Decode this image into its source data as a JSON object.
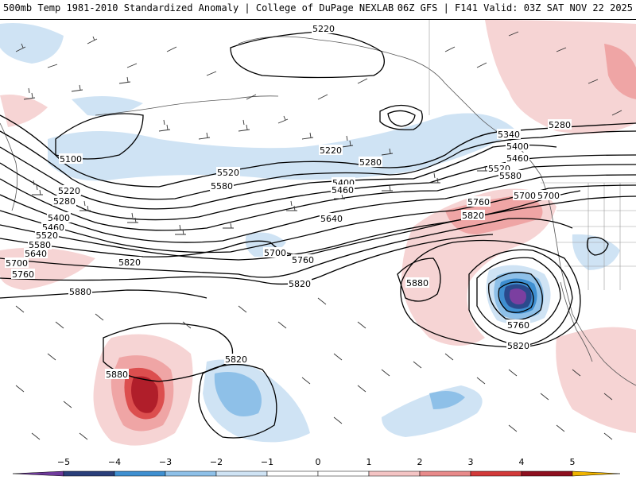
{
  "header": {
    "title_left": "500mb Temp 1981-2010 Standardized Anomaly | College of DuPage NEXLAB",
    "title_right": "06Z GFS | F141 Valid: 03Z SAT NOV 22 2025"
  },
  "map": {
    "contour_labels": [
      "5220",
      "5100",
      "5220",
      "5280",
      "5400",
      "5460",
      "5520",
      "5580",
      "5640",
      "5700",
      "5760",
      "5820",
      "5880",
      "5340",
      "5400",
      "5460",
      "5520",
      "5580",
      "5700",
      "5760",
      "5820",
      "5880",
      "5760",
      "5820",
      "5220",
      "5280",
      "5400",
      "5460",
      "5520",
      "5580",
      "5640",
      "5700",
      "5760",
      "5820",
      "5280",
      "5820",
      "5880",
      "5700"
    ],
    "colors": {
      "neg5": "#7b3fa0",
      "neg4": "#2a4a8c",
      "neg3": "#3f8fd0",
      "neg2": "#8ec0e8",
      "neg1": "#cfe3f4",
      "pos1": "#f6d4d4",
      "pos2": "#efa5a5",
      "pos3": "#dc4e4e",
      "pos4": "#b01e2a",
      "pos5": "#e8b020"
    }
  },
  "legend": {
    "ticks": [
      "−5",
      "−4",
      "−3",
      "−2",
      "−1",
      "0",
      "1",
      "2",
      "3",
      "4",
      "5"
    ],
    "colors": [
      "#6f3a9c",
      "#2a3f7a",
      "#3f8fd0",
      "#8ec0e8",
      "#cfe3f4",
      "#ffffff",
      "#ffffff",
      "#f4c4c4",
      "#e88a8a",
      "#d23a3a",
      "#8e1020",
      "#f0b400"
    ]
  }
}
